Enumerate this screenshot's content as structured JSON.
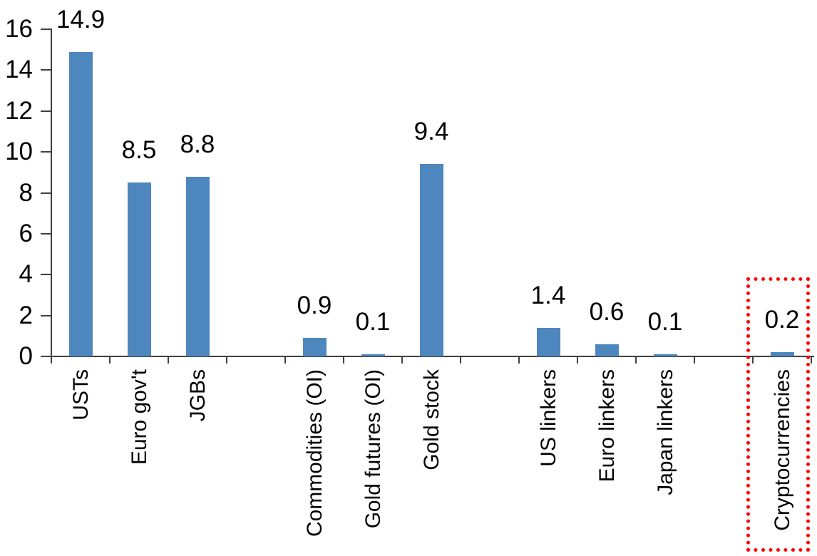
{
  "chart_data": {
    "type": "bar",
    "title": "",
    "xlabel": "",
    "ylabel": "",
    "categories": [
      "USTs",
      "Euro gov't",
      "JGBs",
      "Commodities (OI)",
      "Gold futures (OI)",
      "Gold stock",
      "US linkers",
      "Euro linkers",
      "Japan linkers",
      "Cryptocurrencies"
    ],
    "values": [
      14.9,
      8.5,
      8.8,
      0.9,
      0.1,
      9.4,
      1.4,
      0.6,
      0.1,
      0.2
    ],
    "data_labels": [
      "14.9",
      "8.5",
      "8.8",
      "0.9",
      "0.1",
      "9.4",
      "1.4",
      "0.6",
      "0.1",
      "0.2"
    ],
    "slots": [
      0,
      1,
      2,
      4,
      5,
      6,
      8,
      9,
      10,
      12
    ],
    "total_slots": 13,
    "y_axis": {
      "min": 0,
      "max": 16,
      "step": 2,
      "tick_labels": [
        "0",
        "2",
        "4",
        "6",
        "8",
        "10",
        "12",
        "14",
        "16"
      ]
    },
    "grid": "off",
    "legend": "none",
    "bar_color": "#4E86BE",
    "axis_color": "#404040",
    "text_color": "#000000",
    "highlight": {
      "category": "Cryptocurrencies",
      "box_color": "#FF0000",
      "box_style": "dotted"
    }
  }
}
